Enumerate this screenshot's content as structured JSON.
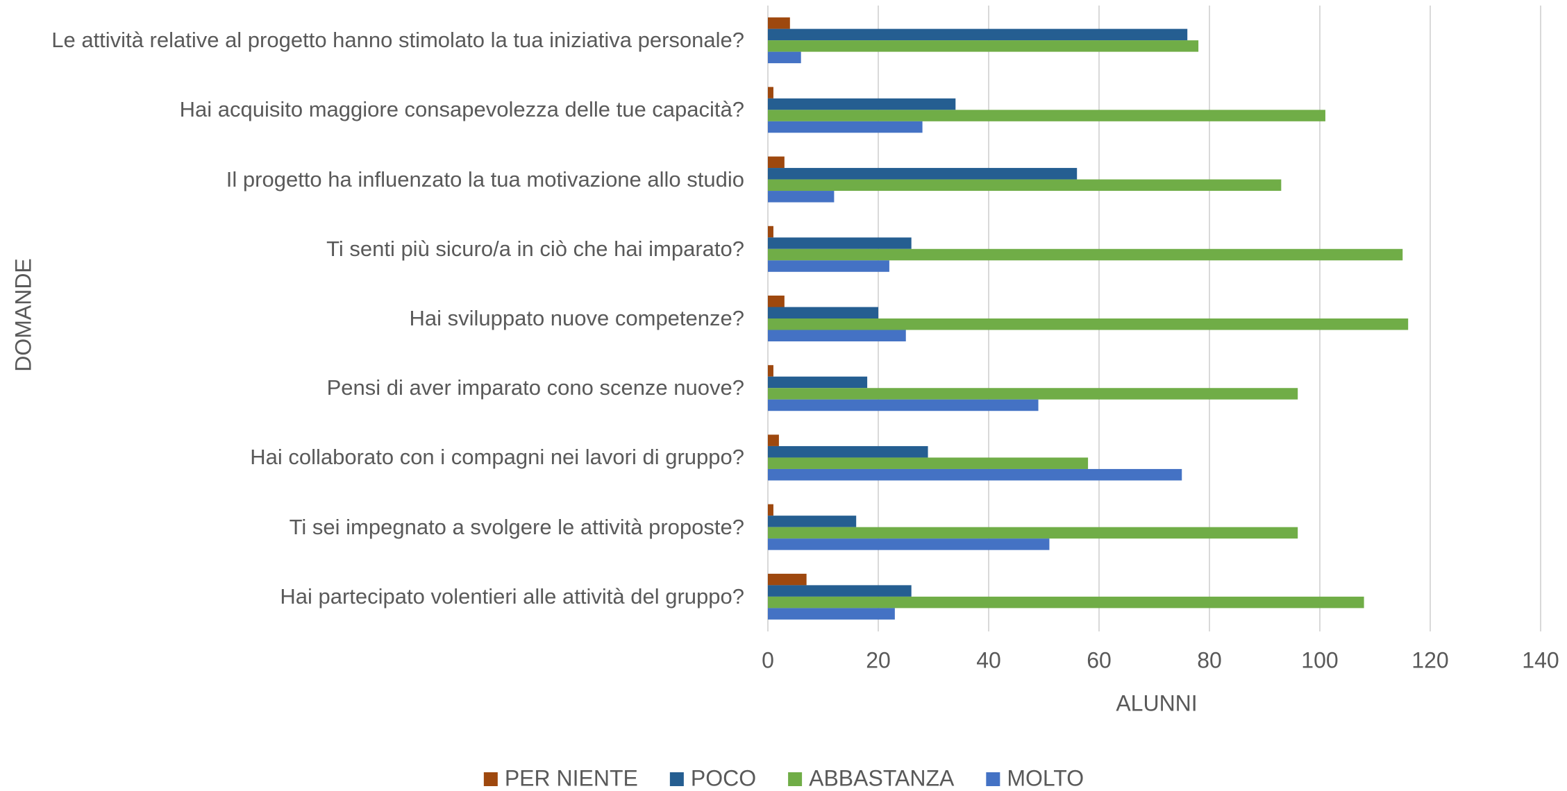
{
  "chart_data": {
    "type": "hbar",
    "categories": [
      "Le attività relative al progetto hanno stimolato la tua iniziativa personale?",
      "Hai acquisito maggiore consapevolezza delle tue capacità?",
      "Il progetto ha influenzato la tua motivazione allo studio",
      "Ti senti più sicuro/a in ciò che hai imparato?",
      "Hai sviluppato nuove competenze?",
      "Pensi di aver imparato cono scenze nuove?",
      "Hai collaborato con i compagni nei lavori di gruppo?",
      "Ti sei impegnato a svolgere le attività proposte?",
      "Hai partecipato volentieri alle attività del gruppo?"
    ],
    "series": [
      {
        "name": "PER NIENTE",
        "color": "#9e480e",
        "values": [
          4,
          1,
          3,
          1,
          3,
          1,
          2,
          1,
          7
        ]
      },
      {
        "name": "POCO",
        "color": "#255e91",
        "values": [
          76,
          34,
          56,
          26,
          20,
          18,
          29,
          16,
          26
        ]
      },
      {
        "name": "ABBASTANZA",
        "color": "#70ad47",
        "values": [
          78,
          101,
          93,
          115,
          116,
          96,
          58,
          96,
          108
        ]
      },
      {
        "name": "MOLTO",
        "color": "#4472c4",
        "values": [
          6,
          28,
          12,
          22,
          25,
          49,
          75,
          51,
          23
        ]
      }
    ],
    "xlabel": "ALUNNI",
    "ylabel": "DOMANDE",
    "xlim": [
      0,
      140
    ],
    "xticks": [
      0,
      20,
      40,
      60,
      80,
      100,
      120,
      140
    ],
    "grid": true,
    "legend": "bottom"
  }
}
